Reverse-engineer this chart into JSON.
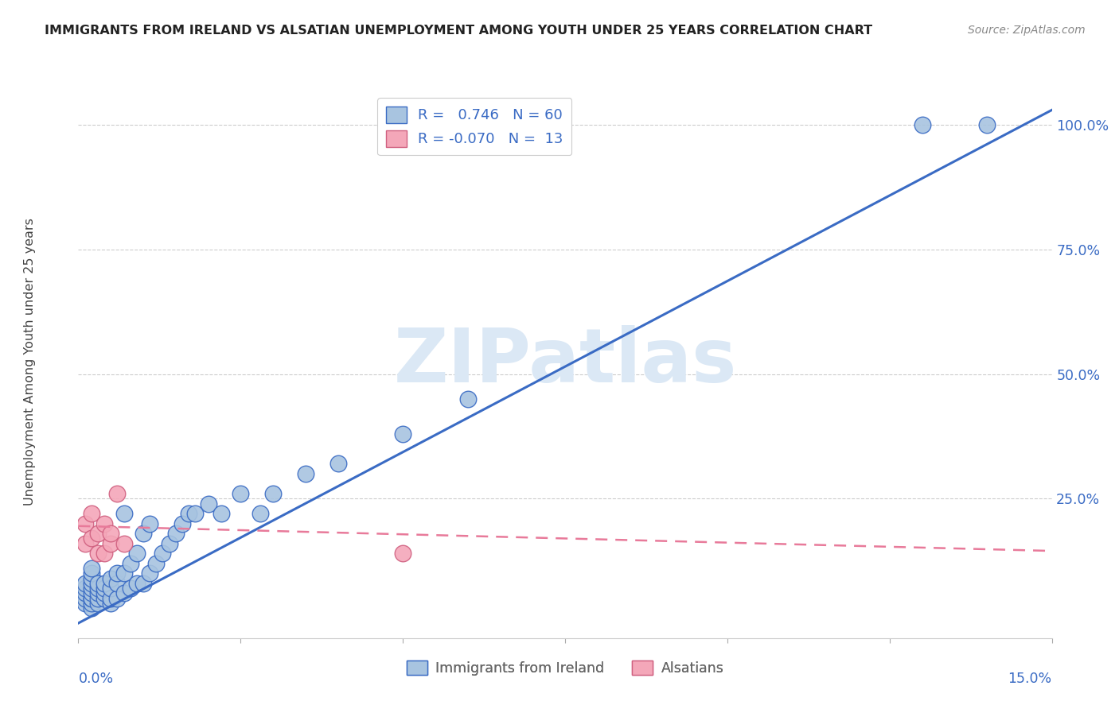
{
  "title": "IMMIGRANTS FROM IRELAND VS ALSATIAN UNEMPLOYMENT AMONG YOUTH UNDER 25 YEARS CORRELATION CHART",
  "source": "Source: ZipAtlas.com",
  "ylabel": "Unemployment Among Youth under 25 years",
  "ytick_labels": [
    "100.0%",
    "75.0%",
    "50.0%",
    "25.0%"
  ],
  "ytick_values": [
    1.0,
    0.75,
    0.5,
    0.25
  ],
  "xmin": 0.0,
  "xmax": 0.15,
  "ymin": -0.03,
  "ymax": 1.08,
  "legend_ireland_r": "0.746",
  "legend_ireland_n": "60",
  "legend_alsatian_r": "-0.070",
  "legend_alsatian_n": "13",
  "color_ireland": "#a8c4e0",
  "color_alsatian": "#f4a7b9",
  "color_ireland_line": "#3a6bc4",
  "color_alsatian_line": "#e87a9a",
  "color_title": "#222222",
  "color_source": "#888888",
  "color_axis_labels": "#3a6bc4",
  "color_ytick_labels": "#3a6bc4",
  "watermark_text": "ZIPatlas",
  "watermark_color": "#dbe8f5",
  "ireland_x": [
    0.001,
    0.001,
    0.001,
    0.001,
    0.001,
    0.002,
    0.002,
    0.002,
    0.002,
    0.002,
    0.002,
    0.002,
    0.002,
    0.002,
    0.002,
    0.003,
    0.003,
    0.003,
    0.003,
    0.003,
    0.004,
    0.004,
    0.004,
    0.004,
    0.005,
    0.005,
    0.005,
    0.005,
    0.006,
    0.006,
    0.006,
    0.007,
    0.007,
    0.007,
    0.008,
    0.008,
    0.009,
    0.009,
    0.01,
    0.01,
    0.011,
    0.011,
    0.012,
    0.013,
    0.014,
    0.015,
    0.016,
    0.017,
    0.018,
    0.02,
    0.022,
    0.025,
    0.028,
    0.03,
    0.035,
    0.04,
    0.05,
    0.06,
    0.13,
    0.14
  ],
  "ireland_y": [
    0.04,
    0.05,
    0.06,
    0.07,
    0.08,
    0.03,
    0.04,
    0.05,
    0.05,
    0.06,
    0.07,
    0.08,
    0.09,
    0.1,
    0.11,
    0.04,
    0.05,
    0.06,
    0.07,
    0.08,
    0.05,
    0.06,
    0.07,
    0.08,
    0.04,
    0.05,
    0.07,
    0.09,
    0.05,
    0.08,
    0.1,
    0.06,
    0.1,
    0.22,
    0.07,
    0.12,
    0.08,
    0.14,
    0.08,
    0.18,
    0.1,
    0.2,
    0.12,
    0.14,
    0.16,
    0.18,
    0.2,
    0.22,
    0.22,
    0.24,
    0.22,
    0.26,
    0.22,
    0.26,
    0.3,
    0.32,
    0.38,
    0.45,
    1.0,
    1.0
  ],
  "alsatian_x": [
    0.001,
    0.001,
    0.002,
    0.002,
    0.003,
    0.003,
    0.004,
    0.004,
    0.005,
    0.005,
    0.05,
    0.006,
    0.007
  ],
  "alsatian_y": [
    0.16,
    0.2,
    0.17,
    0.22,
    0.18,
    0.14,
    0.2,
    0.14,
    0.16,
    0.18,
    0.14,
    0.26,
    0.16
  ],
  "ireland_trend_x": [
    0.0,
    0.15
  ],
  "ireland_trend_y": [
    0.0,
    1.03
  ],
  "alsatian_trend_x": [
    0.0,
    0.15
  ],
  "alsatian_trend_y": [
    0.195,
    0.145
  ]
}
